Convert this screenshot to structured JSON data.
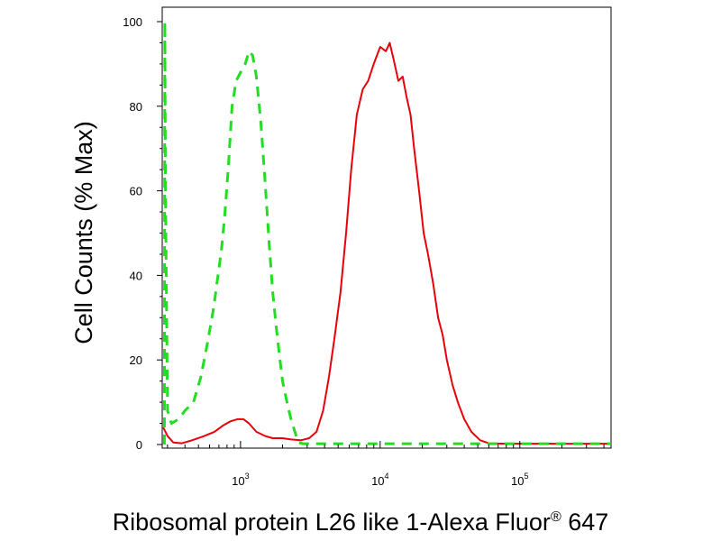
{
  "chart_data": {
    "type": "line",
    "xlabel_text": "Ribosomal protein L26 like 1-Alexa Fluor",
    "xlabel_reg": "®",
    "xlabel_suffix": " 647",
    "ylabel": "Cell Counts (% Max)",
    "x_scale": "log",
    "xlim": [
      275,
      450000
    ],
    "ylim": [
      0,
      100
    ],
    "y_ticks": [
      0,
      20,
      40,
      60,
      80,
      100
    ],
    "x_ticks": [
      {
        "value": 1000,
        "base": "10",
        "exp": "3"
      },
      {
        "value": 10000,
        "base": "10",
        "exp": "4"
      },
      {
        "value": 100000,
        "base": "10",
        "exp": "5"
      }
    ],
    "series": [
      {
        "color": "#e8000b",
        "style": "solid",
        "points": [
          [
            280,
            4
          ],
          [
            300,
            2
          ],
          [
            330,
            0.5
          ],
          [
            380,
            0.3
          ],
          [
            450,
            1
          ],
          [
            550,
            2
          ],
          [
            650,
            3
          ],
          [
            750,
            4.5
          ],
          [
            850,
            5.5
          ],
          [
            950,
            6
          ],
          [
            1050,
            6
          ],
          [
            1150,
            5
          ],
          [
            1300,
            3
          ],
          [
            1500,
            2
          ],
          [
            1700,
            1.5
          ],
          [
            2000,
            1.5
          ],
          [
            2300,
            1.2
          ],
          [
            2700,
            1
          ],
          [
            3100,
            1.5
          ],
          [
            3500,
            3
          ],
          [
            3900,
            8
          ],
          [
            4300,
            16
          ],
          [
            4700,
            25
          ],
          [
            5200,
            36
          ],
          [
            5700,
            50
          ],
          [
            6200,
            65
          ],
          [
            6800,
            78
          ],
          [
            7500,
            84
          ],
          [
            8200,
            86
          ],
          [
            9000,
            90
          ],
          [
            10000,
            94
          ],
          [
            11000,
            93
          ],
          [
            11700,
            95
          ],
          [
            12500,
            91
          ],
          [
            13500,
            86
          ],
          [
            14500,
            87
          ],
          [
            15500,
            82
          ],
          [
            16500,
            78
          ],
          [
            17500,
            70
          ],
          [
            19000,
            60
          ],
          [
            20500,
            50
          ],
          [
            22000,
            45
          ],
          [
            24000,
            38
          ],
          [
            26000,
            30
          ],
          [
            28000,
            26
          ],
          [
            30000,
            20
          ],
          [
            33000,
            14
          ],
          [
            36000,
            10
          ],
          [
            40000,
            6
          ],
          [
            45000,
            3
          ],
          [
            52000,
            1
          ],
          [
            60000,
            0.3
          ],
          [
            80000,
            0.2
          ],
          [
            100000,
            0.2
          ],
          [
            200000,
            0.2
          ],
          [
            450000,
            0.2
          ]
        ]
      },
      {
        "color": "#22dd22",
        "style": "dashed",
        "points": [
          [
            285,
            0
          ],
          [
            287,
            100
          ],
          [
            290,
            60
          ],
          [
            300,
            8
          ],
          [
            320,
            5
          ],
          [
            360,
            6
          ],
          [
            400,
            8
          ],
          [
            460,
            10
          ],
          [
            520,
            16
          ],
          [
            580,
            24
          ],
          [
            640,
            32
          ],
          [
            690,
            40
          ],
          [
            730,
            46
          ],
          [
            770,
            54
          ],
          [
            820,
            66
          ],
          [
            870,
            80
          ],
          [
            930,
            86
          ],
          [
            1000,
            88
          ],
          [
            1080,
            90
          ],
          [
            1150,
            93
          ],
          [
            1220,
            92
          ],
          [
            1300,
            87
          ],
          [
            1400,
            76
          ],
          [
            1500,
            62
          ],
          [
            1600,
            48
          ],
          [
            1700,
            36
          ],
          [
            1800,
            28
          ],
          [
            1900,
            21
          ],
          [
            2000,
            15
          ],
          [
            2150,
            10
          ],
          [
            2300,
            6
          ],
          [
            2450,
            3
          ],
          [
            2600,
            0.5
          ],
          [
            2800,
            0.2
          ],
          [
            5000,
            0.2
          ],
          [
            20000,
            0.2
          ],
          [
            100000,
            0.2
          ],
          [
            450000,
            0.2
          ]
        ]
      }
    ]
  }
}
